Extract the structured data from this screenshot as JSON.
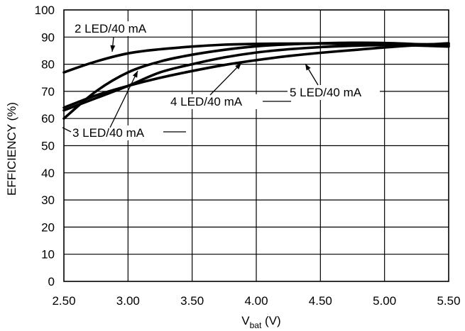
{
  "chart_data": {
    "type": "line",
    "xlabel_main": "V",
    "xlabel_sub": "bat",
    "xlabel_unit": " (V)",
    "ylabel": "EFFICIENCY (%)",
    "xlim": [
      2.5,
      5.5
    ],
    "ylim": [
      0,
      100
    ],
    "grid": true,
    "x_ticks": [
      "2.50",
      "3.00",
      "3.50",
      "4.00",
      "4.50",
      "5.00",
      "5.50"
    ],
    "y_ticks": [
      "0",
      "10",
      "20",
      "30",
      "40",
      "50",
      "60",
      "70",
      "80",
      "90",
      "100"
    ],
    "series": [
      {
        "name": "2 LED/40 mA",
        "x": [
          2.5,
          2.75,
          3.0,
          3.25,
          3.5,
          3.75,
          4.0,
          4.25,
          4.5,
          4.75,
          5.0,
          5.25,
          5.5
        ],
        "y": [
          77,
          81,
          84,
          85.5,
          86.5,
          87.2,
          87.5,
          87.6,
          87.6,
          87.4,
          87.2,
          86.9,
          86.5
        ]
      },
      {
        "name": "3 LED/40 mA",
        "x": [
          2.5,
          2.75,
          3.0,
          3.25,
          3.5,
          3.75,
          4.0,
          4.25,
          4.5,
          4.75,
          5.0,
          5.25,
          5.5
        ],
        "y": [
          60,
          70,
          77,
          81,
          83.5,
          85.3,
          86.6,
          87.3,
          87.7,
          87.9,
          87.8,
          87.4,
          86.9
        ]
      },
      {
        "name": "4 LED/40 mA",
        "x": [
          2.5,
          2.75,
          3.0,
          3.25,
          3.5,
          3.75,
          4.0,
          4.25,
          4.5,
          4.75,
          5.0,
          5.25,
          5.5
        ],
        "y": [
          63,
          67.5,
          72,
          77,
          80,
          82.5,
          84.3,
          85.5,
          86.3,
          86.8,
          87.1,
          87.3,
          87.4
        ]
      },
      {
        "name": "5 LED/40 mA",
        "x": [
          2.5,
          2.75,
          3.0,
          3.25,
          3.5,
          3.75,
          4.0,
          4.25,
          4.5,
          4.75,
          5.0,
          5.25,
          5.5
        ],
        "y": [
          64,
          68.5,
          72,
          75,
          77.5,
          79.7,
          81.5,
          83,
          84.2,
          85.2,
          86.2,
          87,
          87.7
        ]
      }
    ]
  }
}
